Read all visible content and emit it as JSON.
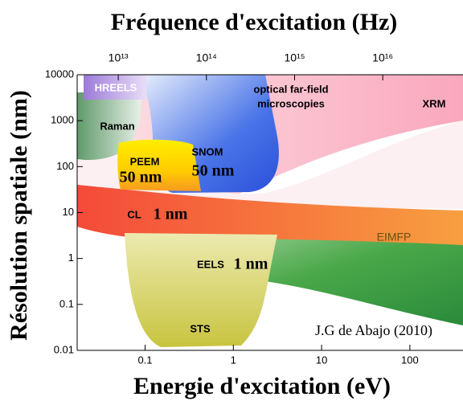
{
  "chart_data": {
    "type": "region",
    "title": "Fréquence d'excitation (Hz)",
    "xlabel": "Energie d'excitation (eV)",
    "ylabel": "Résolution spatiale (nm)",
    "log_x": true,
    "log_y": true,
    "xlim": [
      0.017,
      400
    ],
    "xticks": [
      0.1,
      1,
      10,
      100
    ],
    "ylim": [
      0.01,
      10000
    ],
    "yticks": [
      10000,
      1000,
      100,
      10,
      1,
      0.1,
      0.01
    ],
    "x2lim": [
      3420000000000,
      81300000000000000
    ],
    "x2ticks": [
      {
        "value": 10000000000000,
        "label": "10¹³"
      },
      {
        "value": 100000000000000,
        "label": "10¹⁴"
      },
      {
        "value": 1000000000000000,
        "label": "10¹⁵"
      },
      {
        "value": 10000000000000000,
        "label": "10¹⁶"
      }
    ],
    "annotations": [
      "HREELS",
      "optical far-field",
      "microscopies",
      "XRM",
      "Raman",
      "SNOM",
      "50 nm",
      "PEEM",
      "50 nm",
      "CL",
      "1 nm",
      "EIMFP",
      "EELS",
      "1 nm",
      "STS",
      "J.G de Abajo (2010)"
    ]
  }
}
